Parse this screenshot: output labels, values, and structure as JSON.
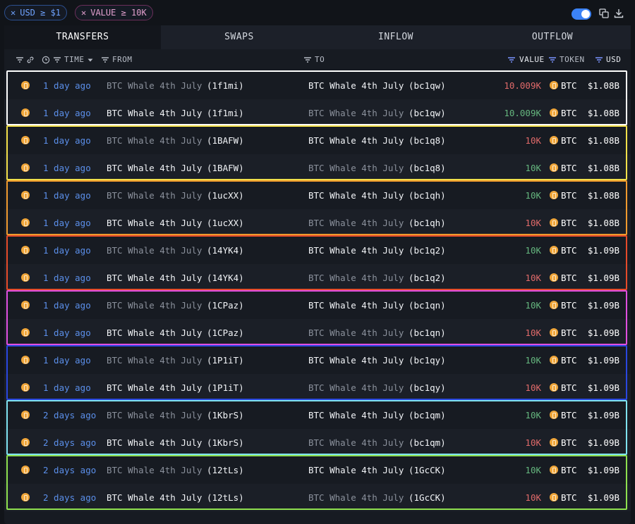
{
  "filters": {
    "usd_label": "USD ≥ $1",
    "value_label": "VALUE ≥ 10K",
    "remove_glyph": "✕"
  },
  "tabs": [
    {
      "label": "TRANSFERS",
      "active": true
    },
    {
      "label": "SWAPS",
      "active": false
    },
    {
      "label": "INFLOW",
      "active": false
    },
    {
      "label": "OUTFLOW",
      "active": false
    }
  ],
  "columns": {
    "time": "TIME",
    "from": "FROM",
    "to": "TO",
    "value": "VALUE",
    "token": "TOKEN",
    "usd": "USD"
  },
  "colors": {
    "outflow_value": "#e06a6a",
    "inflow_value": "#65b67e",
    "time_link": "#5b8fea",
    "btc_coin": "#f0a63a",
    "group_outlines": [
      "#ffffff",
      "#f2e04a",
      "#f09a2e",
      "#e64b2a",
      "#e04fe0",
      "#2a47e0",
      "#7fe3f0",
      "#8ee04f"
    ]
  },
  "icons": [
    "filter-icon",
    "link-icon",
    "clock-icon",
    "sort-desc-icon",
    "btc-coin-icon",
    "copy-icon",
    "download-icon",
    "toggle-switch"
  ],
  "rows": [
    {
      "time": "1 day ago",
      "from": "BTC Whale 4th July",
      "from_addr": "(1f1mi)",
      "to": "BTC Whale 4th July",
      "to_addr": "(bc1qw)",
      "value": "10.009K",
      "token": "BTC",
      "usd": "$1.08B",
      "direction": "out"
    },
    {
      "time": "1 day ago",
      "from": "BTC Whale 4th July",
      "from_addr": "(1f1mi)",
      "to": "BTC Whale 4th July",
      "to_addr": "(bc1qw)",
      "value": "10.009K",
      "token": "BTC",
      "usd": "$1.08B",
      "direction": "in"
    },
    {
      "time": "1 day ago",
      "from": "BTC Whale 4th July",
      "from_addr": "(1BAFW)",
      "to": "BTC Whale 4th July",
      "to_addr": "(bc1q8)",
      "value": "10K",
      "token": "BTC",
      "usd": "$1.08B",
      "direction": "out"
    },
    {
      "time": "1 day ago",
      "from": "BTC Whale 4th July",
      "from_addr": "(1BAFW)",
      "to": "BTC Whale 4th July",
      "to_addr": "(bc1q8)",
      "value": "10K",
      "token": "BTC",
      "usd": "$1.08B",
      "direction": "in"
    },
    {
      "time": "1 day ago",
      "from": "BTC Whale 4th July",
      "from_addr": "(1ucXX)",
      "to": "BTC Whale 4th July",
      "to_addr": "(bc1qh)",
      "value": "10K",
      "token": "BTC",
      "usd": "$1.08B",
      "direction": "in"
    },
    {
      "time": "1 day ago",
      "from": "BTC Whale 4th July",
      "from_addr": "(1ucXX)",
      "to": "BTC Whale 4th July",
      "to_addr": "(bc1qh)",
      "value": "10K",
      "token": "BTC",
      "usd": "$1.08B",
      "direction": "out"
    },
    {
      "time": "1 day ago",
      "from": "BTC Whale 4th July",
      "from_addr": "(14YK4)",
      "to": "BTC Whale 4th July",
      "to_addr": "(bc1q2)",
      "value": "10K",
      "token": "BTC",
      "usd": "$1.09B",
      "direction": "in"
    },
    {
      "time": "1 day ago",
      "from": "BTC Whale 4th July",
      "from_addr": "(14YK4)",
      "to": "BTC Whale 4th July",
      "to_addr": "(bc1q2)",
      "value": "10K",
      "token": "BTC",
      "usd": "$1.09B",
      "direction": "out"
    },
    {
      "time": "1 day ago",
      "from": "BTC Whale 4th July",
      "from_addr": "(1CPaz)",
      "to": "BTC Whale 4th July",
      "to_addr": "(bc1qn)",
      "value": "10K",
      "token": "BTC",
      "usd": "$1.09B",
      "direction": "in"
    },
    {
      "time": "1 day ago",
      "from": "BTC Whale 4th July",
      "from_addr": "(1CPaz)",
      "to": "BTC Whale 4th July",
      "to_addr": "(bc1qn)",
      "value": "10K",
      "token": "BTC",
      "usd": "$1.09B",
      "direction": "out"
    },
    {
      "time": "1 day ago",
      "from": "BTC Whale 4th July",
      "from_addr": "(1P1iT)",
      "to": "BTC Whale 4th July",
      "to_addr": "(bc1qy)",
      "value": "10K",
      "token": "BTC",
      "usd": "$1.09B",
      "direction": "in"
    },
    {
      "time": "1 day ago",
      "from": "BTC Whale 4th July",
      "from_addr": "(1P1iT)",
      "to": "BTC Whale 4th July",
      "to_addr": "(bc1qy)",
      "value": "10K",
      "token": "BTC",
      "usd": "$1.09B",
      "direction": "out"
    },
    {
      "time": "2 days ago",
      "from": "BTC Whale 4th July",
      "from_addr": "(1KbrS)",
      "to": "BTC Whale 4th July",
      "to_addr": "(bc1qm)",
      "value": "10K",
      "token": "BTC",
      "usd": "$1.09B",
      "direction": "in"
    },
    {
      "time": "2 days ago",
      "from": "BTC Whale 4th July",
      "from_addr": "(1KbrS)",
      "to": "BTC Whale 4th July",
      "to_addr": "(bc1qm)",
      "value": "10K",
      "token": "BTC",
      "usd": "$1.09B",
      "direction": "out"
    },
    {
      "time": "2 days ago",
      "from": "BTC Whale 4th July",
      "from_addr": "(12tLs)",
      "to": "BTC Whale 4th July",
      "to_addr": "(1GcCK)",
      "value": "10K",
      "token": "BTC",
      "usd": "$1.09B",
      "direction": "in"
    },
    {
      "time": "2 days ago",
      "from": "BTC Whale 4th July",
      "from_addr": "(12tLs)",
      "to": "BTC Whale 4th July",
      "to_addr": "(1GcCK)",
      "value": "10K",
      "token": "BTC",
      "usd": "$1.09B",
      "direction": "out"
    }
  ]
}
